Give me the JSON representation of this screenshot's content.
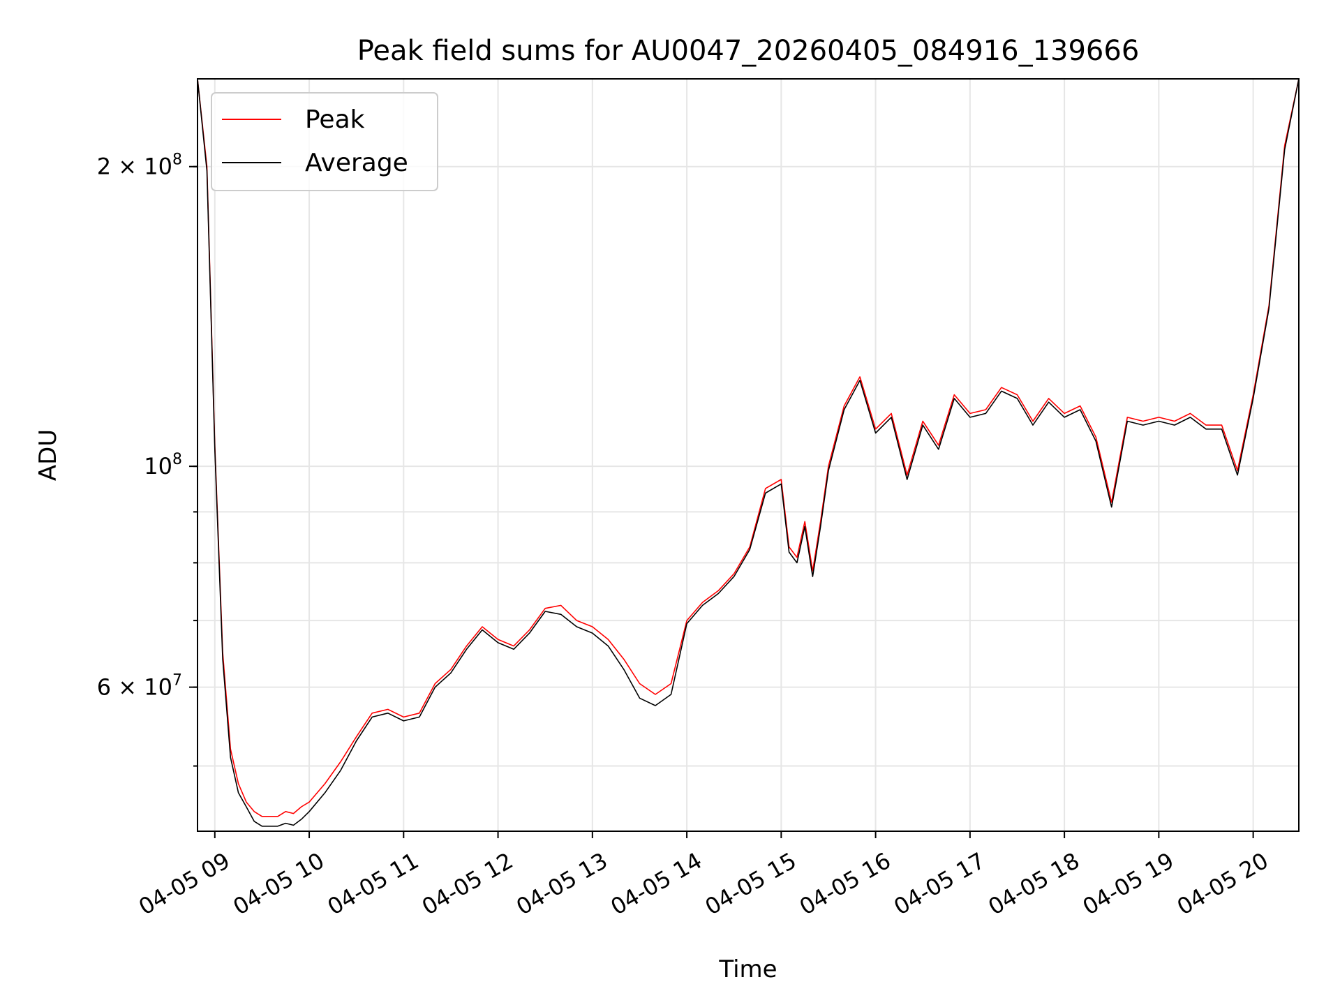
{
  "chart_data": {
    "type": "line",
    "title": "Peak field sums for AU0047_20260405_084916_139666",
    "xlabel": "Time",
    "ylabel": "ADU",
    "yscale": "log",
    "xlim": [
      "2026-04-05 08:49",
      "2026-04-05 20:29"
    ],
    "ylim": [
      43000000,
      245000000
    ],
    "x_ticks": [
      "04-05 09",
      "04-05 10",
      "04-05 11",
      "04-05 12",
      "04-05 13",
      "04-05 14",
      "04-05 15",
      "04-05 16",
      "04-05 17",
      "04-05 18",
      "04-05 19",
      "04-05 20"
    ],
    "y_ticks": [
      {
        "value": 60000000,
        "mantissa": "6",
        "exp": "7"
      },
      {
        "value": 100000000,
        "mantissa": "",
        "exp": "8"
      },
      {
        "value": 200000000,
        "mantissa": "2",
        "exp": "8"
      }
    ],
    "grid": true,
    "legend_position": "top-left",
    "x": [
      "08:49",
      "08:55",
      "09:00",
      "09:05",
      "09:10",
      "09:15",
      "09:20",
      "09:25",
      "09:30",
      "09:35",
      "09:40",
      "09:45",
      "09:50",
      "09:55",
      "10:00",
      "10:10",
      "10:20",
      "10:30",
      "10:40",
      "10:50",
      "11:00",
      "11:10",
      "11:20",
      "11:30",
      "11:40",
      "11:50",
      "12:00",
      "12:10",
      "12:20",
      "12:30",
      "12:40",
      "12:50",
      "13:00",
      "13:10",
      "13:20",
      "13:30",
      "13:40",
      "13:50",
      "14:00",
      "14:10",
      "14:20",
      "14:30",
      "14:40",
      "14:50",
      "15:00",
      "15:05",
      "15:10",
      "15:15",
      "15:20",
      "15:25",
      "15:30",
      "15:40",
      "15:50",
      "16:00",
      "16:10",
      "16:20",
      "16:30",
      "16:40",
      "16:50",
      "17:00",
      "17:10",
      "17:20",
      "17:30",
      "17:40",
      "17:50",
      "18:00",
      "18:10",
      "18:20",
      "18:30",
      "18:40",
      "18:50",
      "19:00",
      "19:10",
      "19:20",
      "19:30",
      "19:40",
      "19:50",
      "20:00",
      "20:10",
      "20:20",
      "20:29"
    ],
    "series": [
      {
        "name": "Peak",
        "color": "#ff0000",
        "values": [
          245000000,
          200000000,
          105000000,
          65000000,
          52000000,
          48000000,
          46000000,
          45000000,
          44500000,
          44500000,
          44500000,
          45000000,
          44800000,
          45500000,
          46000000,
          48000000,
          50500000,
          53500000,
          56500000,
          57000000,
          56000000,
          56500000,
          60500000,
          62500000,
          66000000,
          69000000,
          67000000,
          66000000,
          68500000,
          72000000,
          72500000,
          70000000,
          69000000,
          67000000,
          64000000,
          60500000,
          59000000,
          60500000,
          70000000,
          73000000,
          75000000,
          78000000,
          83000000,
          95000000,
          97000000,
          83000000,
          81000000,
          88000000,
          78500000,
          88000000,
          100000000,
          115000000,
          123000000,
          109000000,
          113000000,
          98000000,
          111000000,
          105000000,
          118000000,
          113000000,
          114000000,
          120000000,
          118000000,
          111000000,
          117000000,
          113000000,
          115000000,
          107000000,
          92000000,
          112000000,
          111000000,
          112000000,
          111000000,
          113000000,
          110000000,
          110000000,
          99000000,
          118000000,
          145000000,
          210000000,
          245000000
        ]
      },
      {
        "name": "Average",
        "color": "#000000",
        "values": [
          245000000,
          198000000,
          104000000,
          64000000,
          51000000,
          47000000,
          45500000,
          44000000,
          43500000,
          43500000,
          43500000,
          43800000,
          43600000,
          44200000,
          45000000,
          47000000,
          49500000,
          53000000,
          56000000,
          56500000,
          55500000,
          56000000,
          60000000,
          62000000,
          65500000,
          68500000,
          66500000,
          65500000,
          68000000,
          71500000,
          71000000,
          69000000,
          68000000,
          66000000,
          62500000,
          58500000,
          57500000,
          59000000,
          69500000,
          72500000,
          74500000,
          77500000,
          82500000,
          94000000,
          96000000,
          82000000,
          80000000,
          87000000,
          77500000,
          87000000,
          99000000,
          114000000,
          122000000,
          108000000,
          112000000,
          97000000,
          110000000,
          104000000,
          117000000,
          112000000,
          113000000,
          119000000,
          117000000,
          110000000,
          116000000,
          112000000,
          114000000,
          106000000,
          91000000,
          111000000,
          110000000,
          111000000,
          110000000,
          112000000,
          109000000,
          109000000,
          98000000,
          117000000,
          144000000,
          208000000,
          245000000
        ]
      }
    ]
  }
}
